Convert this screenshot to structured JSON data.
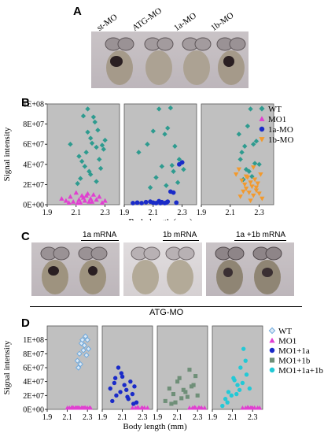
{
  "panelA": {
    "letter": "A",
    "labels": [
      "st-MO",
      "ATG-MO",
      "1a-MO",
      "1b-MO"
    ]
  },
  "panelB": {
    "letter": "B",
    "ylabel": "Signal intensity",
    "xlabel": "Body length (mm)",
    "legend": [
      {
        "name": "WT",
        "marker": "diamond",
        "color": "#2e9b8f"
      },
      {
        "name": "MO1",
        "marker": "triangle",
        "color": "#e040d0"
      },
      {
        "name": "1a-MO",
        "marker": "circle",
        "color": "#1a2bc8"
      },
      {
        "name": "1b-MO",
        "marker": "triangle-down",
        "color": "#f29a2e"
      }
    ]
  },
  "panelC": {
    "letter": "C",
    "labels": [
      "1a mRNA",
      "1b mRNA",
      "1a +1b mRNA"
    ],
    "footer": "ATG-MO"
  },
  "panelD": {
    "letter": "D",
    "ylabel": "Signal intensity",
    "xlabel": "Body length (mm)",
    "legend": [
      {
        "name": "WT",
        "marker": "diamond-open",
        "color": "#6fa9dc"
      },
      {
        "name": "MO1",
        "marker": "triangle",
        "color": "#e040d0"
      },
      {
        "name": "MO1+1a",
        "marker": "circle",
        "color": "#1a2bc8"
      },
      {
        "name": "MO1+1b",
        "marker": "square",
        "color": "#6f8f78"
      },
      {
        "name": "MO1+1a+1b",
        "marker": "circle",
        "color": "#23c9d6"
      }
    ]
  },
  "chart_data": [
    {
      "type": "scatter",
      "ylabel": "Signal intensity",
      "xlabel": "Body length (mm)",
      "ylim": [
        0,
        100000000
      ],
      "yticks": [
        "0E+00",
        "2E+07",
        "4E+07",
        "6E+07",
        "8E+07",
        "1E+08"
      ],
      "xlim": [
        1.9,
        2.4
      ],
      "xticks": [
        "1.9",
        "2.1",
        "2.3"
      ],
      "grid": false,
      "legend": "right",
      "subplots": [
        {
          "series": [
            {
              "name": "WT",
              "x": [
                2.06,
                2.12,
                2.15,
                2.18,
                2.2,
                2.22,
                2.25,
                2.28,
                2.14,
                2.17,
                2.21,
                2.24,
                2.27,
                2.19,
                2.23,
                2.16,
                2.26,
                2.3,
                2.13,
                2.2,
                2.29,
                2.11,
                2.18,
                2.24
              ],
              "y": [
                60000000,
                48000000,
                88000000,
                95000000,
                66000000,
                87000000,
                74000000,
                59000000,
                43000000,
                52000000,
                61000000,
                57000000,
                36000000,
                33000000,
                82000000,
                38000000,
                45000000,
                64000000,
                26000000,
                30000000,
                55000000,
                21000000,
                72000000,
                23000000
              ]
            },
            {
              "name": "MO1",
              "x": [
                2.0,
                2.03,
                2.06,
                2.08,
                2.1,
                2.12,
                2.13,
                2.14,
                2.15,
                2.16,
                2.18,
                2.2,
                2.21,
                2.22,
                2.24,
                2.26,
                2.28,
                2.3,
                2.17,
                2.11,
                2.05,
                2.19
              ],
              "y": [
                6000000,
                4000000,
                8000000,
                3000000,
                12000000,
                5000000,
                2000000,
                9000000,
                7000000,
                4000000,
                11000000,
                6000000,
                3000000,
                10000000,
                5000000,
                8000000,
                2000000,
                4000000,
                9000000,
                1000000,
                2000000,
                3000000
              ]
            }
          ]
        },
        {
          "series": [
            {
              "name": "WT",
              "x": [
                2.0,
                2.06,
                2.1,
                2.14,
                2.18,
                2.2,
                2.22,
                2.25,
                2.28,
                2.3,
                2.16,
                2.12,
                2.24,
                2.27,
                2.31,
                2.08,
                2.19,
                2.23
              ],
              "y": [
                52000000,
                60000000,
                73000000,
                95000000,
                70000000,
                76000000,
                96000000,
                58000000,
                45000000,
                42000000,
                38000000,
                27000000,
                33000000,
                22000000,
                35000000,
                17000000,
                19000000,
                39000000
              ]
            },
            {
              "name": "1a-MO",
              "x": [
                1.96,
                1.99,
                2.02,
                2.05,
                2.08,
                2.1,
                2.12,
                2.14,
                2.16,
                2.18,
                2.2,
                2.22,
                2.24,
                2.26,
                2.28,
                2.3,
                2.15,
                2.19
              ],
              "y": [
                1000000,
                2000000,
                1500000,
                2500000,
                3000000,
                2000000,
                1000000,
                3500000,
                2500000,
                1500000,
                3000000,
                13000000,
                12000000,
                2000000,
                40000000,
                42000000,
                1000000,
                2000000
              ]
            }
          ]
        },
        {
          "series": [
            {
              "name": "WT",
              "x": [
                2.16,
                2.18,
                2.2,
                2.22,
                2.24,
                2.26,
                2.28,
                2.3,
                2.19,
                2.21,
                2.25,
                2.27,
                2.17,
                2.23
              ],
              "y": [
                70000000,
                52000000,
                58000000,
                78000000,
                95000000,
                60000000,
                63000000,
                40000000,
                25000000,
                35000000,
                28000000,
                41000000,
                45000000,
                33000000
              ]
            },
            {
              "name": "1b-MO",
              "x": [
                2.14,
                2.16,
                2.18,
                2.2,
                2.21,
                2.22,
                2.23,
                2.24,
                2.25,
                2.26,
                2.27,
                2.28,
                2.29,
                2.3,
                2.31,
                2.32,
                2.19,
                2.17,
                2.24,
                2.28,
                2.21,
                2.26
              ],
              "y": [
                30000000,
                35000000,
                24000000,
                20000000,
                16000000,
                27000000,
                12000000,
                22000000,
                18000000,
                9000000,
                25000000,
                14000000,
                21000000,
                11000000,
                30000000,
                6000000,
                13000000,
                8000000,
                4000000,
                17000000,
                28000000,
                37000000
              ]
            }
          ]
        }
      ]
    },
    {
      "type": "scatter",
      "ylabel": "Signal intensity",
      "xlabel": "Body length (mm)",
      "ylim": [
        0,
        120000000
      ],
      "yticks": [
        "0E+00",
        "2E+07",
        "4E+07",
        "6E+07",
        "8E+07",
        "1E+08"
      ],
      "xlim": [
        1.9,
        2.4
      ],
      "xticks": [
        "1.9",
        "2.1",
        "2.3"
      ],
      "grid": false,
      "legend": "right",
      "subplots": [
        {
          "series": [
            {
              "name": "WT",
              "x": [
                2.2,
                2.22,
                2.24,
                2.25,
                2.26,
                2.27,
                2.28,
                2.29,
                2.3,
                2.23,
                2.21,
                2.31
              ],
              "y": [
                70000000,
                80000000,
                95000000,
                100000000,
                85000000,
                92000000,
                105000000,
                78000000,
                100000000,
                65000000,
                60000000,
                87000000
              ]
            },
            {
              "name": "MO1",
              "x": [
                2.1,
                2.12,
                2.14,
                2.16,
                2.18,
                2.2,
                2.22,
                2.24,
                2.26,
                2.28,
                2.3,
                2.32,
                2.15,
                2.21,
                2.27,
                2.19,
                2.25,
                2.33
              ],
              "y": [
                1500000,
                500000,
                2000000,
                1000000,
                2500000,
                1500000,
                500000,
                2000000,
                1000000,
                2500000,
                1500000,
                500000,
                3000000,
                1000000,
                2000000,
                500000,
                1500000,
                1000000
              ]
            }
          ]
        },
        {
          "series": [
            {
              "name": "MO1+1a",
              "x": [
                1.98,
                2.0,
                2.02,
                2.04,
                2.06,
                2.08,
                2.1,
                2.12,
                2.14,
                2.16,
                2.18,
                2.2,
                2.22,
                2.24,
                2.03,
                2.09,
                2.15,
                2.21
              ],
              "y": [
                30000000,
                12000000,
                38000000,
                20000000,
                60000000,
                25000000,
                47000000,
                35000000,
                28000000,
                15000000,
                40000000,
                22000000,
                33000000,
                10000000,
                45000000,
                52000000,
                18000000,
                8000000
              ]
            },
            {
              "name": "MO1",
              "x": [
                2.2,
                2.23,
                2.26,
                2.29,
                2.32,
                2.35,
                2.25,
                2.3
              ],
              "y": [
                1000000,
                2000000,
                500000,
                1500000,
                2500000,
                1000000,
                3000000,
                500000
              ]
            }
          ]
        },
        {
          "series": [
            {
              "name": "MO1+1b",
              "x": [
                1.98,
                2.02,
                2.06,
                2.1,
                2.14,
                2.18,
                2.22,
                2.26,
                2.3,
                2.08,
                2.12,
                2.16,
                2.2,
                2.24,
                2.04,
                2.28
              ],
              "y": [
                12000000,
                30000000,
                22000000,
                40000000,
                16000000,
                25000000,
                57000000,
                35000000,
                20000000,
                10000000,
                45000000,
                28000000,
                18000000,
                33000000,
                8000000,
                48000000
              ]
            },
            {
              "name": "MO1",
              "x": [
                2.22,
                2.25,
                2.28,
                2.31,
                2.34,
                2.37,
                2.27,
                2.32
              ],
              "y": [
                1000000,
                2000000,
                500000,
                1500000,
                2500000,
                1000000,
                3000000,
                500000
              ]
            }
          ]
        },
        {
          "series": [
            {
              "name": "MO1+1a+1b",
              "x": [
                2.0,
                2.03,
                2.06,
                2.09,
                2.12,
                2.15,
                2.18,
                2.21,
                2.24,
                2.27,
                2.05,
                2.11,
                2.17,
                2.23,
                2.14,
                2.2
              ],
              "y": [
                5000000,
                15000000,
                25000000,
                20000000,
                42000000,
                35000000,
                60000000,
                87000000,
                50000000,
                30000000,
                10000000,
                45000000,
                28000000,
                70000000,
                22000000,
                38000000
              ]
            },
            {
              "name": "MO1",
              "x": [
                2.2,
                2.23,
                2.26,
                2.29,
                2.32,
                2.35,
                2.25,
                2.3,
                2.37,
                2.28
              ],
              "y": [
                1000000,
                2000000,
                500000,
                1500000,
                2500000,
                1000000,
                3000000,
                500000,
                2000000,
                1500000
              ]
            }
          ]
        }
      ]
    }
  ]
}
